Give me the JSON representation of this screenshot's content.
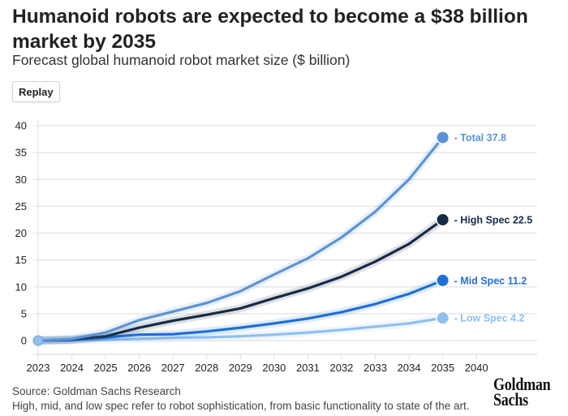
{
  "header": {
    "title": "Humanoid robots are expected to become a $38 billion market by 2035",
    "subtitle": "Forecast global humanoid robot market size ($ billion)",
    "replay_label": "Replay"
  },
  "footer": {
    "source": "Source: Goldman Sachs Research",
    "note": "High, mid, and low spec refer to robot sophistication, from basic functionality to state of the art.",
    "logo_line1": "Goldman",
    "logo_line2": "Sachs"
  },
  "chart_data": {
    "type": "line",
    "title": "Humanoid robots are expected to become a $38 billion market by 2035",
    "subtitle": "Forecast global humanoid robot market size ($ billion)",
    "xlabel": "",
    "ylabel": "",
    "x": [
      "2023",
      "2024",
      "2025",
      "2026",
      "2027",
      "2028",
      "2029",
      "2030",
      "2031",
      "2032",
      "2033",
      "2034",
      "2035"
    ],
    "x_tick_labels": [
      "2023",
      "2024",
      "2025",
      "2026",
      "2027",
      "2028",
      "2029",
      "2030",
      "2031",
      "2032",
      "2033",
      "2034",
      "2035",
      "2040"
    ],
    "y_ticks": [
      0,
      5,
      10,
      15,
      20,
      25,
      30,
      35,
      40
    ],
    "ylim": [
      0,
      40
    ],
    "grid": true,
    "legend": "end-of-line labels (right)",
    "series": [
      {
        "name": "Total",
        "label": "- Total 37.8",
        "color": "#5b93d8",
        "values": [
          0,
          0.3,
          1.5,
          3.8,
          5.4,
          7.0,
          9.2,
          12.3,
          15.3,
          19.2,
          24.0,
          30.0,
          37.8
        ]
      },
      {
        "name": "High Spec",
        "label": "- High Spec 22.5",
        "color": "#172b47",
        "values": [
          0,
          0.2,
          0.8,
          2.4,
          3.7,
          4.8,
          6.0,
          7.9,
          9.7,
          11.9,
          14.7,
          18.0,
          22.5
        ]
      },
      {
        "name": "Mid Spec",
        "label": "- Mid Spec 11.2",
        "color": "#1f6fd6",
        "values": [
          0,
          0.1,
          0.6,
          1.1,
          1.2,
          1.7,
          2.4,
          3.2,
          4.1,
          5.3,
          6.8,
          8.7,
          11.2
        ]
      },
      {
        "name": "Low Spec",
        "label": "- Low Spec 4.2",
        "color": "#8fbff0",
        "values": [
          0,
          0.05,
          0.15,
          0.3,
          0.5,
          0.6,
          0.8,
          1.1,
          1.5,
          2.0,
          2.6,
          3.2,
          4.2
        ]
      }
    ]
  }
}
